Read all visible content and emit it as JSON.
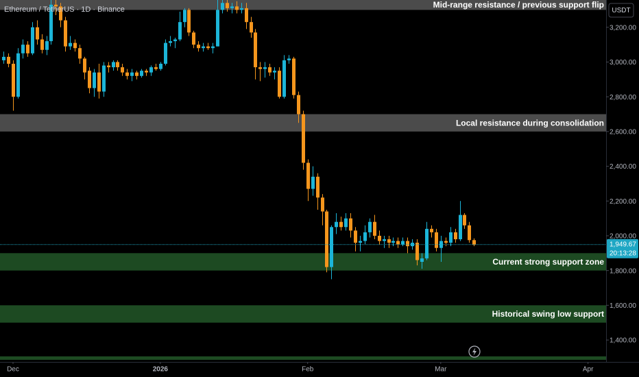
{
  "chart_data": {
    "type": "candlestick",
    "title": "Ethereum / TetherUS · 1D · Binance",
    "currency": "USDT",
    "up_color": "#1cb5d8",
    "down_color": "#f5961d",
    "x": [
      -2,
      -1,
      0,
      1,
      2,
      3,
      4,
      5,
      6,
      7,
      8,
      9,
      10,
      11,
      12,
      13,
      14,
      15,
      16,
      17,
      18,
      19,
      20,
      21,
      22,
      23,
      24,
      25,
      26,
      27,
      28,
      29,
      30,
      31,
      32,
      33,
      34,
      35,
      36,
      37,
      38,
      39,
      40,
      41,
      42,
      43,
      44,
      45,
      46,
      47,
      48,
      49,
      50,
      51,
      52,
      53,
      54,
      55,
      56,
      57,
      58,
      59,
      60,
      61,
      62,
      63,
      64,
      65,
      66,
      67,
      68,
      69,
      70,
      71,
      72,
      73,
      74,
      75,
      76,
      77,
      78,
      79,
      80,
      81,
      82,
      83,
      84,
      85,
      86,
      87,
      88,
      89,
      90,
      91,
      92,
      93,
      94,
      95,
      96,
      97
    ],
    "open": [
      3010,
      3030,
      2990,
      2800,
      3050,
      3100,
      3050,
      3200,
      3130,
      3070,
      3120,
      3330,
      3320,
      3240,
      3090,
      3110,
      3080,
      3020,
      2950,
      2850,
      2940,
      2830,
      2980,
      2970,
      3000,
      2970,
      2940,
      2920,
      2940,
      2920,
      2950,
      2940,
      2970,
      2960,
      2990,
      3110,
      3120,
      3130,
      3230,
      3300,
      3170,
      3100,
      3080,
      3090,
      3080,
      3090,
      3300,
      3340,
      3310,
      3320,
      3300,
      3310,
      3230,
      3170,
      2970,
      2960,
      2970,
      2940,
      2950,
      2800,
      3010,
      3020,
      2810,
      2700,
      2420,
      2270,
      2340,
      2220,
      2140,
      1820,
      2050,
      2080,
      2050,
      2100,
      2030,
      1960,
      1970,
      2020,
      2080,
      2000,
      1970,
      1980,
      1960,
      1970,
      1950,
      1970,
      1940,
      1960,
      1850,
      1870,
      2040,
      2020,
      1930,
      1970,
      1960,
      2020,
      1980,
      2120,
      2060,
      1975
    ],
    "high": [
      3060,
      3050,
      3010,
      3080,
      3130,
      3120,
      3230,
      3240,
      3160,
      3150,
      3400,
      3400,
      3340,
      3260,
      3150,
      3130,
      3100,
      3030,
      2970,
      2960,
      2990,
      3000,
      3000,
      3010,
      3010,
      2990,
      2960,
      2960,
      2950,
      2960,
      2960,
      2980,
      2990,
      3000,
      3130,
      3150,
      3140,
      3290,
      3310,
      3310,
      3180,
      3120,
      3110,
      3110,
      3110,
      3360,
      3400,
      3380,
      3340,
      3350,
      3340,
      3340,
      3260,
      3190,
      3000,
      3000,
      2990,
      2970,
      2970,
      3040,
      3040,
      3030,
      2830,
      2720,
      2440,
      2400,
      2360,
      2240,
      2150,
      2060,
      2130,
      2110,
      2130,
      2130,
      2050,
      2000,
      2060,
      2100,
      2120,
      2030,
      2000,
      2000,
      1990,
      1990,
      1990,
      1990,
      1980,
      1980,
      1900,
      2080,
      2060,
      2040,
      2000,
      1990,
      2050,
      2040,
      2200,
      2130,
      2080,
      1985
    ],
    "low": [
      2990,
      2970,
      2720,
      2790,
      3020,
      3030,
      3040,
      3100,
      3050,
      3040,
      3100,
      3270,
      3200,
      3060,
      3070,
      3060,
      2990,
      2900,
      2820,
      2800,
      2790,
      2800,
      2940,
      2950,
      2950,
      2920,
      2900,
      2890,
      2900,
      2910,
      2920,
      2920,
      2950,
      2950,
      2980,
      3090,
      3080,
      3120,
      3200,
      3150,
      3080,
      3060,
      3060,
      3070,
      3050,
      3090,
      3280,
      3290,
      3280,
      3280,
      3280,
      3190,
      3140,
      2900,
      2890,
      2910,
      2920,
      2900,
      2790,
      2790,
      2990,
      2790,
      2650,
      2380,
      2200,
      2230,
      2150,
      2060,
      1790,
      1750,
      2010,
      2030,
      2030,
      1990,
      1910,
      1910,
      1950,
      1990,
      1980,
      1950,
      1930,
      1930,
      1940,
      1930,
      1940,
      1900,
      1920,
      1830,
      1810,
      1860,
      1990,
      1910,
      1850,
      1940,
      1940,
      1960,
      1970,
      2040,
      1960,
      1940
    ],
    "close": [
      3030,
      2990,
      2800,
      3050,
      3100,
      3050,
      3200,
      3130,
      3070,
      3120,
      3330,
      3320,
      3240,
      3090,
      3110,
      3080,
      3020,
      2940,
      2850,
      2940,
      2830,
      2980,
      2970,
      3000,
      2970,
      2940,
      2920,
      2940,
      2920,
      2950,
      2940,
      2970,
      2960,
      2990,
      3110,
      3120,
      3130,
      3230,
      3300,
      3170,
      3100,
      3080,
      3090,
      3080,
      3090,
      3300,
      3340,
      3310,
      3320,
      3300,
      3310,
      3230,
      3170,
      2970,
      2960,
      2970,
      2940,
      2950,
      2800,
      3010,
      3020,
      2810,
      2700,
      2420,
      2270,
      2340,
      2220,
      2140,
      1820,
      2050,
      2080,
      2050,
      2100,
      2030,
      1960,
      1970,
      2020,
      2080,
      2000,
      1970,
      1980,
      1960,
      1970,
      1950,
      1970,
      1940,
      1960,
      1860,
      1870,
      2040,
      2020,
      1930,
      1970,
      1960,
      2020,
      1980,
      2120,
      2060,
      1975,
      1949.67
    ],
    "xlim": [
      -2.74,
      124.8
    ],
    "ylim": [
      1274,
      3357
    ],
    "xticks": [
      {
        "value": 0,
        "label": "Dec"
      },
      {
        "value": 31,
        "label": "2026"
      },
      {
        "value": 62,
        "label": "Feb"
      },
      {
        "value": 90,
        "label": "Mar"
      },
      {
        "value": 121,
        "label": "Apr"
      }
    ],
    "yticks": [
      {
        "value": 3200,
        "label": "3,200.00"
      },
      {
        "value": 3000,
        "label": "3,000.00"
      },
      {
        "value": 2800,
        "label": "2,800.00"
      },
      {
        "value": 2600,
        "label": "2,600.00"
      },
      {
        "value": 2400,
        "label": "2,400.00"
      },
      {
        "value": 2200,
        "label": "2,200.00"
      },
      {
        "value": 2000,
        "label": "2,000.00"
      },
      {
        "value": 1800,
        "label": "1,800.00"
      },
      {
        "value": 1600,
        "label": "1,600.00"
      },
      {
        "value": 1400,
        "label": "1,400.00"
      }
    ],
    "zones": [
      {
        "range": [
          3300,
          3360
        ],
        "label": "Mid-range resistance / previous support flip",
        "color": "#4b4b4b"
      },
      {
        "range": [
          2600,
          2700
        ],
        "label": "Local resistance during consolidation",
        "color": "#4b4b4b"
      },
      {
        "range": [
          1800,
          1900
        ],
        "label": "Current strong support zone",
        "color": "#1d4a22"
      },
      {
        "range": [
          1500,
          1600
        ],
        "label": "Historical swing low support",
        "color": "#1d4a22"
      },
      {
        "range": [
          1286,
          1306
        ],
        "color": "#1d4a22"
      }
    ],
    "last_price": {
      "value": 1949.67,
      "label": "1,949.67"
    },
    "countdown": "20:13:28",
    "price_line_color": "#1fa7c4"
  }
}
